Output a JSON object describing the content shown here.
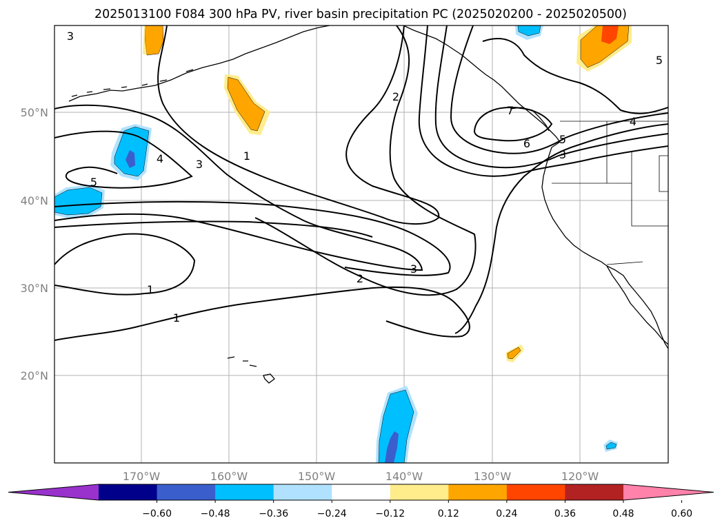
{
  "title": "2025013100 F084 300 hPa PV, river basin precipitation PC (2025020200 - 2025020500)",
  "map": {
    "lon_labels": [
      "170°W",
      "160°W",
      "150°W",
      "140°W",
      "130°W",
      "120°W"
    ],
    "lat_labels": [
      "50°N",
      "40°N",
      "30°N",
      "20°N"
    ],
    "pv_contour_labels": [
      {
        "id": "pv-label-3-nw",
        "text": "3"
      },
      {
        "id": "pv-label-5-ne",
        "text": "5"
      },
      {
        "id": "pv-label-2-top",
        "text": "2"
      },
      {
        "id": "pv-label-7",
        "text": "7"
      },
      {
        "id": "pv-label-4-e",
        "text": "4"
      },
      {
        "id": "pv-label-6",
        "text": "6"
      },
      {
        "id": "pv-label-5-e",
        "text": "5"
      },
      {
        "id": "pv-label-3-e",
        "text": "3"
      },
      {
        "id": "pv-label-1-mid",
        "text": "1"
      },
      {
        "id": "pv-label-4-w",
        "text": "4"
      },
      {
        "id": "pv-label-3-w",
        "text": "3"
      },
      {
        "id": "pv-label-5-w",
        "text": "5"
      },
      {
        "id": "pv-label-1-sw",
        "text": "1"
      },
      {
        "id": "pv-label-2-s",
        "text": "2"
      },
      {
        "id": "pv-label-3-s",
        "text": "3"
      },
      {
        "id": "pv-label-1-s",
        "text": "1"
      }
    ]
  },
  "colorbar": {
    "colors": [
      "#9932cc",
      "#00008b",
      "#3a5fcd",
      "#00bfff",
      "#b0e2ff",
      "#ffffff",
      "#ffec8b",
      "#ffa500",
      "#ff4500",
      "#b22222",
      "#ff82ab"
    ],
    "tick_labels": [
      "−0.60",
      "−0.48",
      "−0.36",
      "−0.24",
      "−0.12",
      "0.12",
      "0.24",
      "0.36",
      "0.48",
      "0.60"
    ]
  }
}
